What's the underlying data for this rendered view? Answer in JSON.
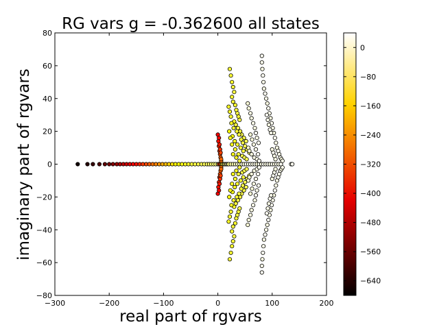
{
  "chart_data": {
    "type": "scatter",
    "title": "RG vars g = -0.362600 all states",
    "xlabel": "real part of rgvars",
    "ylabel": "imaginary part of rgvars",
    "xlim": [
      -300,
      200
    ],
    "ylim": [
      -80,
      80
    ],
    "xticks": [
      "−300",
      "−200",
      "−100",
      "0",
      "100",
      "200"
    ],
    "xtick_values": [
      -300,
      -200,
      -100,
      0,
      100,
      200
    ],
    "yticks": [
      "80",
      "60",
      "40",
      "20",
      "0",
      "−20",
      "−40",
      "−60",
      "−80"
    ],
    "ytick_values": [
      80,
      60,
      40,
      20,
      0,
      -20,
      -40,
      -60,
      -80
    ],
    "grid": false,
    "legend": "none",
    "marker_edge_color": "#000000",
    "colorbar": {
      "colormap": "hot",
      "range": [
        -680,
        40
      ],
      "ticks": [
        "0",
        "−80",
        "−160",
        "−240",
        "−320",
        "−400",
        "−480",
        "−560",
        "−640"
      ],
      "tick_values": [
        0,
        -80,
        -160,
        -240,
        -320,
        -400,
        -480,
        -560,
        -640
      ],
      "colors": [
        "#000000",
        "#e60000",
        "#ffd200",
        "#ffffff"
      ]
    },
    "series": [
      {
        "x": [
          -258,
          -240,
          -230,
          -218,
          -208,
          -200,
          -193,
          -186,
          -180,
          -174,
          -168,
          -162,
          -156,
          -150,
          -144,
          -138,
          -132,
          -126,
          -120,
          -114,
          -108,
          -102,
          -96,
          -90,
          -84,
          -78,
          -72,
          -66,
          -60,
          -54,
          -48,
          -42,
          -36,
          -30,
          -25,
          -20,
          -16,
          -12,
          -8,
          -4,
          0,
          2,
          4,
          6,
          8,
          10,
          12,
          14,
          16,
          18,
          20,
          24,
          28,
          32,
          36,
          40,
          44,
          48,
          52,
          56,
          60,
          64,
          68,
          72,
          76,
          80,
          84,
          88,
          92,
          96,
          100,
          104,
          108,
          112,
          116,
          135,
          137
        ],
        "y": [
          0,
          0,
          0,
          0,
          0,
          0,
          0,
          0,
          0,
          0,
          0,
          0,
          0,
          0,
          0,
          0,
          0,
          0,
          0,
          0,
          0,
          0,
          0,
          0,
          0,
          0,
          0,
          0,
          0,
          0,
          0,
          0,
          0,
          0,
          0,
          0,
          0,
          0,
          0,
          0,
          0,
          0,
          0,
          0,
          0,
          0,
          0,
          0,
          0,
          0,
          0,
          0,
          0,
          0,
          0,
          0,
          0,
          0,
          0,
          0,
          0,
          0,
          0,
          0,
          0,
          0,
          0,
          0,
          0,
          0,
          0,
          0,
          0,
          0,
          0,
          0,
          0
        ],
        "c": [
          -660,
          -640,
          -620,
          -600,
          -580,
          -560,
          -540,
          -520,
          -500,
          -480,
          -460,
          -440,
          -420,
          -400,
          -380,
          -360,
          -340,
          -320,
          -300,
          -280,
          -260,
          -240,
          -220,
          -200,
          -180,
          -160,
          -150,
          -140,
          -130,
          -120,
          -110,
          -100,
          -95,
          -90,
          -85,
          -80,
          -75,
          -70,
          -65,
          -60,
          -20,
          -300,
          -400,
          -250,
          -120,
          -80,
          -60,
          -40,
          -20,
          -10,
          -50,
          -30,
          -20,
          -10,
          0,
          10,
          20,
          10,
          30,
          20,
          30,
          20,
          30,
          10,
          30,
          20,
          30,
          20,
          30,
          20,
          30,
          20,
          30,
          20,
          30,
          30,
          30
        ]
      },
      {
        "x": [
          0,
          0,
          1,
          1,
          2,
          2,
          3,
          3,
          4,
          4,
          5,
          5,
          6,
          6,
          2,
          2,
          3,
          3,
          4,
          4,
          5,
          5,
          6,
          6
        ],
        "y": [
          18,
          -18,
          14,
          -14,
          11,
          -11,
          8,
          -8,
          6,
          -6,
          4,
          -4,
          2,
          -2,
          16,
          -16,
          12,
          -12,
          9,
          -9,
          7,
          -7,
          3,
          -3
        ],
        "c": [
          -430,
          -430,
          -400,
          -400,
          -380,
          -380,
          -360,
          -360,
          -340,
          -340,
          -320,
          -320,
          -300,
          -300,
          -420,
          -420,
          -390,
          -390,
          -370,
          -370,
          -350,
          -350,
          -310,
          -310
        ]
      },
      {
        "x": [
          22,
          22,
          24,
          24,
          26,
          26,
          28,
          28,
          30,
          30,
          26,
          26,
          28,
          28,
          32,
          32,
          34,
          34,
          36,
          36,
          38,
          38,
          40,
          40,
          20,
          20,
          22,
          22,
          24,
          24,
          30,
          30,
          33,
          33,
          37,
          37,
          41,
          41,
          44,
          44,
          48,
          48,
          52,
          52,
          25,
          25,
          29,
          29,
          35,
          35,
          39,
          39,
          43,
          43,
          46,
          46,
          50,
          50,
          54,
          54,
          58,
          58,
          27,
          27,
          31,
          31,
          36,
          36,
          42,
          42,
          47,
          47,
          21,
          21,
          23,
          23,
          26,
          26,
          32,
          32,
          38,
          38,
          45,
          45,
          49,
          49,
          53,
          53,
          28,
          28,
          34,
          34,
          40,
          40
        ],
        "y": [
          58,
          -58,
          54,
          -54,
          50,
          -50,
          47,
          -47,
          44,
          -44,
          41,
          -41,
          38,
          -38,
          36,
          -36,
          33,
          -33,
          31,
          -31,
          29,
          -29,
          27,
          -27,
          35,
          -35,
          32,
          -32,
          29,
          -29,
          26,
          -26,
          24,
          -24,
          22,
          -22,
          20,
          -20,
          18,
          -18,
          16,
          -16,
          14,
          -14,
          25,
          -25,
          22,
          -22,
          20,
          -20,
          18,
          -18,
          15,
          -15,
          13,
          -13,
          11,
          -11,
          9,
          -9,
          7,
          -7,
          17,
          -17,
          14,
          -14,
          12,
          -12,
          10,
          -10,
          8,
          -8,
          20,
          -20,
          16,
          -16,
          12,
          -12,
          9,
          -9,
          6,
          -6,
          5,
          -5,
          4,
          -4,
          3,
          -3,
          6,
          -6,
          4,
          -4,
          2,
          -2
        ],
        "c": [
          -110,
          -110,
          -115,
          -115,
          -120,
          -120,
          -110,
          -110,
          -105,
          -105,
          -115,
          -115,
          -110,
          -110,
          -120,
          -120,
          -110,
          -110,
          -100,
          -100,
          -110,
          -110,
          -95,
          -95,
          -125,
          -125,
          -120,
          -120,
          -115,
          -115,
          -125,
          -125,
          -110,
          -110,
          -100,
          -100,
          -105,
          -105,
          -95,
          -95,
          -100,
          -100,
          -90,
          -90,
          -130,
          -130,
          -120,
          -120,
          -115,
          -115,
          -105,
          -105,
          -110,
          -110,
          -100,
          -100,
          -95,
          -95,
          -90,
          -90,
          -85,
          -85,
          -140,
          -140,
          -130,
          -130,
          -120,
          -120,
          -115,
          -115,
          -110,
          -110,
          -150,
          -150,
          -140,
          -140,
          -130,
          -130,
          -120,
          -120,
          -110,
          -110,
          -100,
          -100,
          -95,
          -95,
          -90,
          -90,
          -135,
          -135,
          -125,
          -125,
          -115,
          -115
        ]
      },
      {
        "x": [
          55,
          55,
          57,
          57,
          60,
          60,
          62,
          62,
          65,
          65,
          68,
          68,
          70,
          70,
          72,
          72,
          75,
          75,
          60,
          60,
          63,
          63,
          66,
          66,
          70,
          70,
          74,
          74,
          56,
          56,
          58,
          58,
          62,
          62,
          67,
          67,
          72,
          72,
          76,
          76
        ],
        "y": [
          37,
          -37,
          34,
          -34,
          31,
          -31,
          28,
          -28,
          25,
          -25,
          22,
          -22,
          19,
          -19,
          16,
          -16,
          13,
          -13,
          18,
          -18,
          15,
          -15,
          12,
          -12,
          9,
          -9,
          6,
          -6,
          10,
          -10,
          8,
          -8,
          6,
          -6,
          4,
          -4,
          3,
          -3,
          2,
          -2
        ],
        "c": [
          10,
          10,
          15,
          15,
          20,
          20,
          20,
          20,
          25,
          25,
          20,
          20,
          30,
          30,
          25,
          25,
          30,
          30,
          10,
          10,
          15,
          15,
          20,
          20,
          25,
          25,
          30,
          30,
          5,
          5,
          10,
          10,
          15,
          15,
          20,
          20,
          25,
          25,
          30,
          30
        ]
      },
      {
        "x": [
          81,
          81,
          81,
          81,
          82,
          82,
          83,
          83,
          84,
          84,
          85,
          85,
          87,
          87,
          89,
          89,
          91,
          91,
          93,
          93,
          95,
          95,
          97,
          97,
          99,
          99,
          101,
          101,
          103,
          103,
          105,
          105,
          107,
          107,
          109,
          109,
          111,
          111,
          113,
          113,
          115,
          115,
          117,
          117,
          119,
          119,
          90,
          90,
          92,
          92,
          94,
          94,
          96,
          96,
          98,
          98,
          100,
          100,
          102,
          102,
          104,
          104,
          106,
          106
        ],
        "y": [
          66,
          -66,
          62,
          -62,
          58,
          -58,
          54,
          -54,
          50,
          -50,
          46,
          -46,
          43,
          -43,
          40,
          -40,
          37,
          -37,
          34,
          -34,
          31,
          -31,
          28,
          -28,
          25,
          -25,
          22,
          -22,
          19,
          -19,
          16,
          -16,
          13,
          -13,
          10,
          -10,
          8,
          -8,
          6,
          -6,
          4,
          -4,
          3,
          -3,
          2,
          -2,
          30,
          -30,
          27,
          -27,
          24,
          -24,
          21,
          -21,
          19,
          -19,
          9,
          -9,
          7,
          -7,
          5,
          -5,
          3,
          -3
        ],
        "c": [
          30,
          30,
          25,
          25,
          20,
          20,
          30,
          30,
          25,
          25,
          20,
          20,
          30,
          30,
          25,
          25,
          20,
          20,
          30,
          30,
          25,
          25,
          20,
          20,
          30,
          30,
          25,
          25,
          20,
          20,
          30,
          30,
          25,
          25,
          20,
          20,
          30,
          30,
          25,
          25,
          30,
          30,
          20,
          20,
          25,
          25,
          30,
          30,
          25,
          25,
          20,
          20,
          30,
          30,
          25,
          25,
          20,
          20,
          30,
          30,
          25,
          25,
          20,
          20
        ]
      }
    ]
  }
}
